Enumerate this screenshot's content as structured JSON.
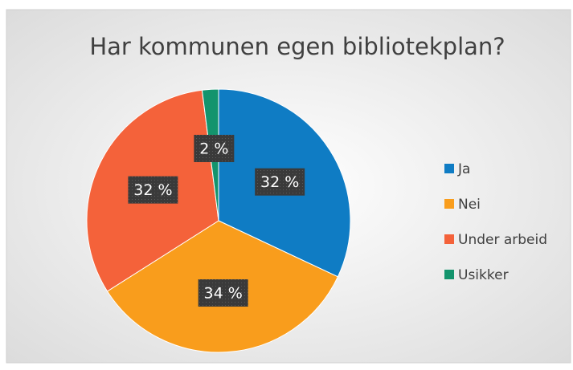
{
  "chart_data": {
    "type": "pie",
    "title": "Har kommunen egen bibliotekplan?",
    "categories": [
      "Ja",
      "Nei",
      "Under arbeid",
      "Usikker"
    ],
    "values": [
      32,
      34,
      32,
      2
    ],
    "value_labels": [
      "32 %",
      "34 %",
      "32 %",
      "2 %"
    ],
    "colors": [
      "#0f7cc4",
      "#f99d1c",
      "#f4623a",
      "#13946d"
    ],
    "legend": "right"
  }
}
